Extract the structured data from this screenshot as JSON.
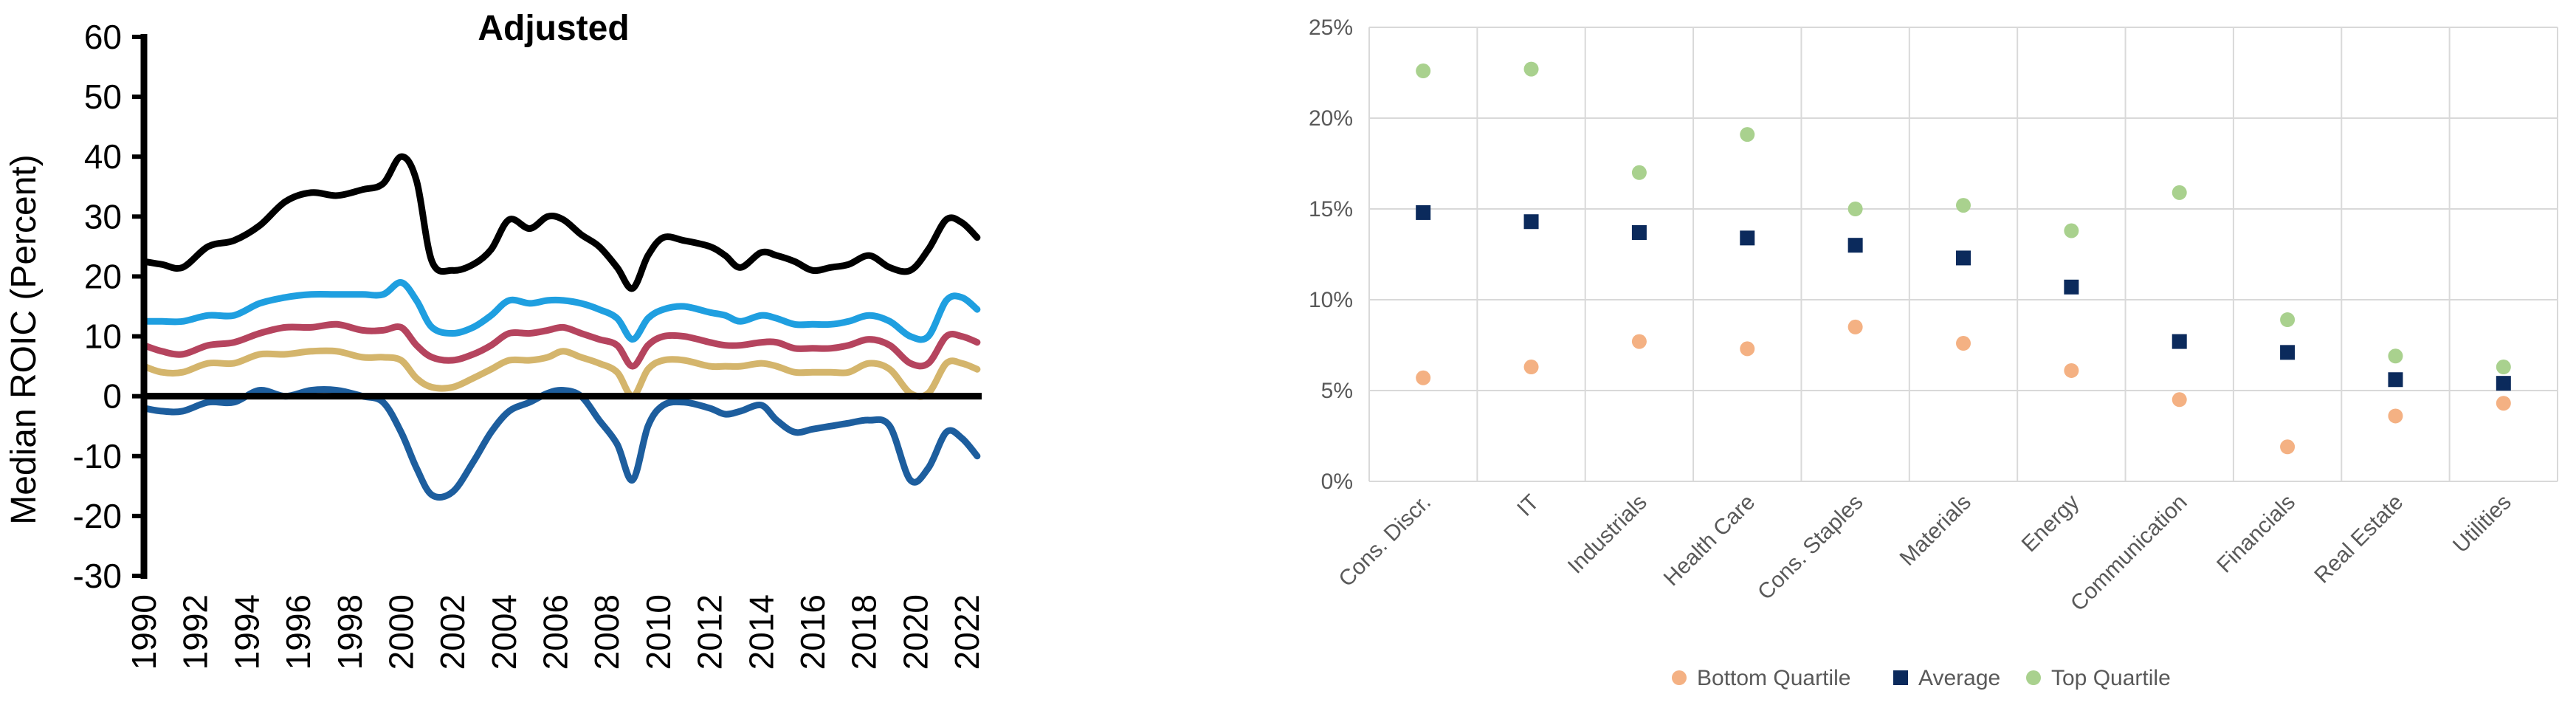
{
  "chart_data": [
    {
      "type": "line",
      "title": "Adjusted",
      "xlabel": "",
      "ylabel": "Median ROIC (Percent)",
      "ylim": [
        -30,
        60
      ],
      "yticks": [
        -30,
        -20,
        -10,
        0,
        10,
        20,
        30,
        40,
        50,
        60
      ],
      "xlim": [
        1990,
        2022
      ],
      "xticks": [
        1990,
        1992,
        1994,
        1996,
        1998,
        2000,
        2002,
        2004,
        2006,
        2008,
        2010,
        2012,
        2014,
        2016,
        2018,
        2020,
        2022
      ],
      "zero_line": true,
      "series": [
        {
          "name": "series-black",
          "color": "#000000",
          "x": [
            1990,
            1990.7,
            1991.5,
            1992.5,
            1993.5,
            1994.5,
            1995.5,
            1996.5,
            1997.5,
            1998.5,
            1999.3,
            2000,
            2000.6,
            2001.2,
            2002,
            2002.8,
            2003.5,
            2004.2,
            2005,
            2005.7,
            2006.3,
            2007,
            2007.7,
            2008.4,
            2009,
            2009.6,
            2010.2,
            2011,
            2012,
            2012.6,
            2013.2,
            2014,
            2014.6,
            2015.3,
            2016,
            2016.7,
            2017.4,
            2018.2,
            2019,
            2019.8,
            2020.5,
            2021.2,
            2021.8,
            2022.4
          ],
          "y": [
            22.5,
            22,
            21.5,
            25,
            26,
            28.5,
            32.5,
            34,
            33.5,
            34.5,
            35.5,
            40,
            36,
            22.5,
            21,
            22,
            24.5,
            29.5,
            28,
            30,
            29.5,
            27,
            25,
            21.5,
            18,
            23.5,
            26.5,
            26,
            25,
            23.5,
            21.5,
            24,
            23.5,
            22.5,
            21,
            21.5,
            22,
            23.5,
            21.5,
            21,
            24.5,
            29.5,
            29,
            26.5
          ]
        },
        {
          "name": "series-light-blue",
          "color": "#1f9fe0",
          "x": [
            1990,
            1990.7,
            1991.5,
            1992.5,
            1993.5,
            1994.5,
            1995.5,
            1996.5,
            1997.5,
            1998.5,
            1999.3,
            2000,
            2000.6,
            2001.2,
            2002,
            2002.8,
            2003.5,
            2004.2,
            2005,
            2005.7,
            2006.3,
            2007,
            2007.7,
            2008.4,
            2009,
            2009.6,
            2010.2,
            2011,
            2012,
            2012.6,
            2013.2,
            2014,
            2014.6,
            2015.3,
            2016,
            2016.7,
            2017.4,
            2018.2,
            2019,
            2019.8,
            2020.5,
            2021.2,
            2021.8,
            2022.4
          ],
          "y": [
            12.5,
            12.5,
            12.5,
            13.5,
            13.5,
            15.5,
            16.5,
            17,
            17,
            17,
            17,
            19,
            16,
            11.5,
            10.5,
            11.5,
            13.5,
            16,
            15.5,
            16,
            16,
            15.5,
            14.5,
            13,
            9.5,
            13,
            14.5,
            15,
            14,
            13.5,
            12.5,
            13.5,
            13,
            12,
            12,
            12,
            12.5,
            13.5,
            12.5,
            10,
            10,
            16,
            16.5,
            14.5
          ]
        },
        {
          "name": "series-red",
          "color": "#b5445e",
          "x": [
            1990,
            1990.7,
            1991.5,
            1992.5,
            1993.5,
            1994.5,
            1995.5,
            1996.5,
            1997.5,
            1998.5,
            1999.3,
            2000,
            2000.6,
            2001.2,
            2002,
            2002.8,
            2003.5,
            2004.2,
            2005,
            2005.7,
            2006.3,
            2007,
            2007.7,
            2008.4,
            2009,
            2009.6,
            2010.2,
            2011,
            2012,
            2012.6,
            2013.2,
            2014,
            2014.6,
            2015.3,
            2016,
            2016.7,
            2017.4,
            2018.2,
            2019,
            2019.8,
            2020.5,
            2021.2,
            2021.8,
            2022.4
          ],
          "y": [
            8.5,
            7.5,
            7,
            8.5,
            9,
            10.5,
            11.5,
            11.5,
            12,
            11,
            11,
            11.5,
            8.5,
            6.5,
            6,
            7,
            8.5,
            10.5,
            10.5,
            11,
            11.5,
            10.5,
            9.5,
            8.5,
            5,
            8.5,
            10,
            10,
            9,
            8.5,
            8.5,
            9,
            9,
            8,
            8,
            8,
            8.5,
            9.5,
            8.5,
            5.5,
            5.5,
            10,
            10,
            9
          ]
        },
        {
          "name": "series-gold",
          "color": "#d4b56c",
          "x": [
            1990,
            1990.7,
            1991.5,
            1992.5,
            1993.5,
            1994.5,
            1995.5,
            1996.5,
            1997.5,
            1998.5,
            1999.3,
            2000,
            2000.6,
            2001.2,
            2002,
            2002.8,
            2003.5,
            2004.2,
            2005,
            2005.7,
            2006.3,
            2007,
            2007.7,
            2008.4,
            2009,
            2009.6,
            2010.2,
            2011,
            2012,
            2012.6,
            2013.2,
            2014,
            2014.6,
            2015.3,
            2016,
            2016.7,
            2017.4,
            2018.2,
            2019,
            2019.8,
            2020.5,
            2021.2,
            2021.8,
            2022.4
          ],
          "y": [
            5,
            4,
            4,
            5.5,
            5.5,
            7,
            7,
            7.5,
            7.5,
            6.5,
            6.5,
            6,
            3,
            1.5,
            1.5,
            3,
            4.5,
            6,
            6,
            6.5,
            7.5,
            6.5,
            5.5,
            4,
            0,
            4.5,
            6,
            6,
            5,
            5,
            5,
            5.5,
            5,
            4,
            4,
            4,
            4,
            5.5,
            4.5,
            0.5,
            0.5,
            5.5,
            5.5,
            4.5
          ]
        },
        {
          "name": "series-dark-blue",
          "color": "#1d5e9e",
          "x": [
            1990,
            1990.7,
            1991.5,
            1992.5,
            1993.5,
            1994.5,
            1995.5,
            1996.5,
            1997.5,
            1998.5,
            1999.3,
            2000,
            2000.6,
            2001.2,
            2002,
            2002.8,
            2003.5,
            2004.2,
            2005,
            2005.7,
            2006.3,
            2007,
            2007.7,
            2008.4,
            2009,
            2009.6,
            2010.2,
            2011,
            2012,
            2012.6,
            2013.2,
            2014,
            2014.6,
            2015.3,
            2016,
            2016.7,
            2017.4,
            2018.2,
            2019,
            2019.8,
            2020.5,
            2021.2,
            2021.8,
            2022.4
          ],
          "y": [
            -2,
            -2.5,
            -2.5,
            -1,
            -1,
            1,
            0,
            1,
            1,
            0,
            -1,
            -6,
            -12,
            -16.5,
            -16,
            -11,
            -6,
            -2.5,
            -1,
            0.5,
            1,
            0,
            -4,
            -8,
            -14,
            -5,
            -1.5,
            -1,
            -2,
            -3,
            -2.5,
            -1.5,
            -4,
            -6,
            -5.5,
            -5,
            -4.5,
            -4,
            -5,
            -14,
            -12,
            -6,
            -7,
            -10
          ]
        }
      ]
    },
    {
      "type": "scatter",
      "title": "",
      "xlabel": "",
      "ylabel": "",
      "ylim": [
        0,
        25
      ],
      "yticks": [
        0,
        5,
        10,
        15,
        20,
        25
      ],
      "ytick_suffix": "%",
      "grid": true,
      "legend_position": "bottom-center",
      "categories": [
        "Cons. Discr.",
        "IT",
        "Industrials",
        "Health Care",
        "Cons. Staples",
        "Materials",
        "Energy",
        "Communication",
        "Financials",
        "Real Estate",
        "Utilities"
      ],
      "series": [
        {
          "name": "Bottom Quartile",
          "color": "#f4b183",
          "marker": "circle",
          "values": [
            5.7,
            6.3,
            7.7,
            7.3,
            8.5,
            7.6,
            6.1,
            4.5,
            1.9,
            3.6,
            4.3
          ]
        },
        {
          "name": "Average",
          "color": "#0b2a5c",
          "marker": "square",
          "values": [
            14.8,
            14.3,
            13.7,
            13.4,
            13.0,
            12.3,
            10.7,
            7.7,
            7.1,
            5.6,
            5.4
          ]
        },
        {
          "name": "Top Quartile",
          "color": "#a9d18e",
          "marker": "circle",
          "values": [
            22.6,
            22.7,
            17.0,
            19.1,
            15.0,
            15.2,
            13.8,
            15.9,
            8.9,
            6.9,
            6.3
          ]
        }
      ]
    }
  ]
}
